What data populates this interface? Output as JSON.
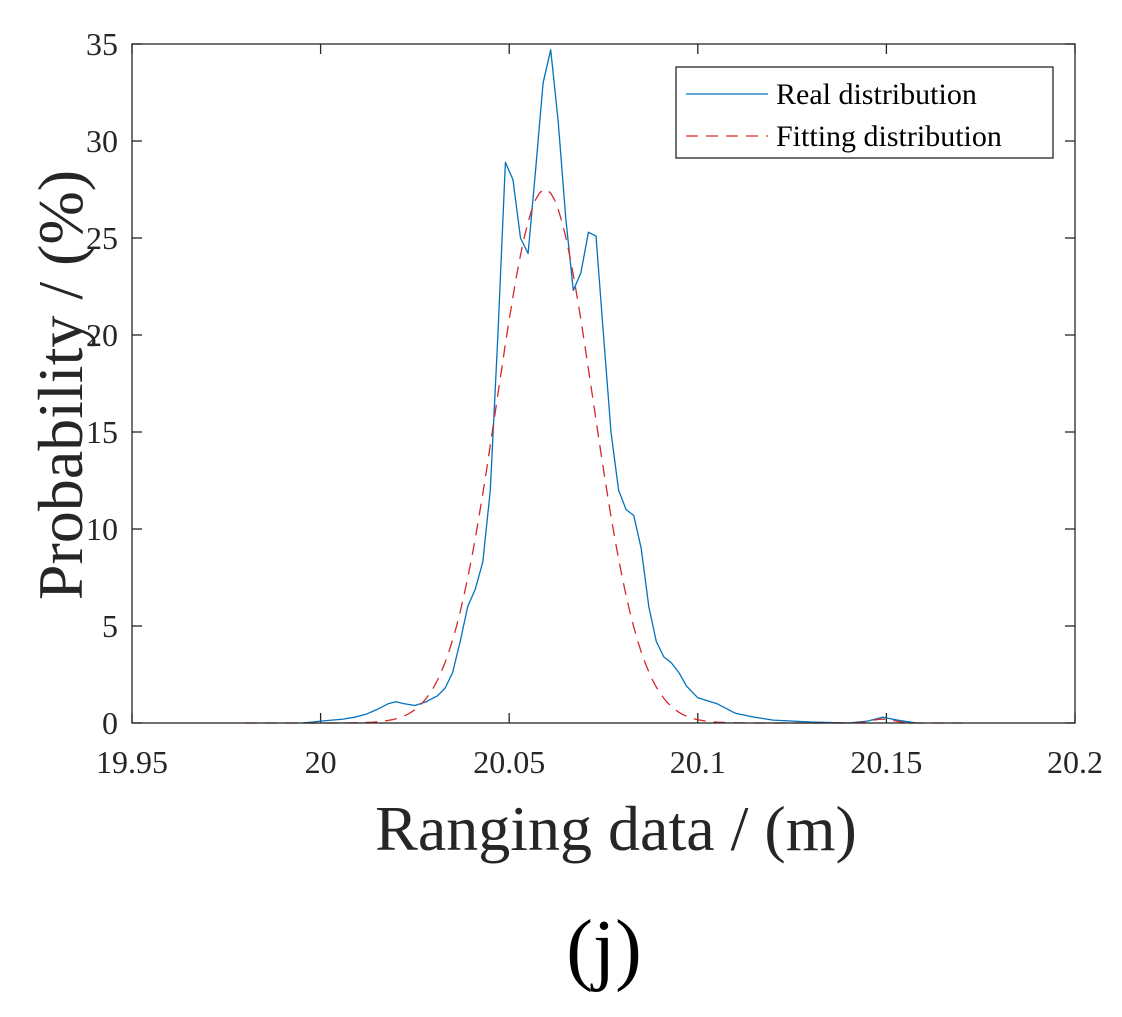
{
  "chart_data": {
    "type": "line",
    "title": "",
    "panel_label": "(j)",
    "xlabel": "Ranging data / (m)",
    "ylabel": "Probability / (%)",
    "xlim": [
      19.95,
      20.2
    ],
    "ylim": [
      0,
      35
    ],
    "xticks": [
      19.95,
      20,
      20.05,
      20.1,
      20.15,
      20.2
    ],
    "xtick_labels": [
      "19.95",
      "20",
      "20.05",
      "20.1",
      "20.15",
      "20.2"
    ],
    "yticks": [
      0,
      5,
      10,
      15,
      20,
      25,
      30,
      35
    ],
    "ytick_labels": [
      "0",
      "5",
      "10",
      "15",
      "20",
      "25",
      "30",
      "35"
    ],
    "legend_position": "top-right",
    "series": [
      {
        "name": "Real distribution",
        "color": "#0072BD",
        "style": "solid",
        "x": [
          19.995,
          19.998,
          20.0,
          20.003,
          20.006,
          20.009,
          20.012,
          20.015,
          20.018,
          20.02,
          20.022,
          20.025,
          20.028,
          20.031,
          20.033,
          20.035,
          20.037,
          20.039,
          20.041,
          20.043,
          20.045,
          20.047,
          20.049,
          20.051,
          20.053,
          20.055,
          20.057,
          20.059,
          20.061,
          20.063,
          20.065,
          20.067,
          20.069,
          20.071,
          20.073,
          20.075,
          20.077,
          20.079,
          20.081,
          20.083,
          20.085,
          20.087,
          20.089,
          20.091,
          20.093,
          20.095,
          20.097,
          20.1,
          20.105,
          20.11,
          20.115,
          20.12,
          20.13,
          20.14,
          20.145,
          20.149,
          20.153,
          20.158
        ],
        "values": [
          0,
          0.05,
          0.1,
          0.15,
          0.2,
          0.3,
          0.45,
          0.7,
          1.0,
          1.1,
          1.0,
          0.9,
          1.1,
          1.4,
          1.8,
          2.6,
          4.2,
          6.0,
          6.9,
          8.3,
          12.0,
          20.0,
          28.9,
          28.0,
          25.0,
          24.2,
          28.5,
          33.0,
          34.7,
          31.0,
          26.0,
          22.3,
          23.2,
          25.3,
          25.1,
          20.0,
          15.0,
          12.0,
          11.0,
          10.7,
          9.0,
          6.0,
          4.2,
          3.4,
          3.1,
          2.6,
          1.9,
          1.3,
          1.0,
          0.5,
          0.3,
          0.15,
          0.05,
          0.0,
          0.1,
          0.3,
          0.15,
          0.0
        ]
      },
      {
        "name": "Fitting distribution",
        "color": "#D62728",
        "style": "dashed",
        "fit": {
          "peak": 27.5,
          "center": 20.0595,
          "sigma": 0.0127,
          "x_start": 19.98,
          "x_end": 20.17,
          "step": 0.001,
          "secondary": {
            "center": 20.149,
            "peak": 0.2,
            "sigma": 0.003
          }
        }
      }
    ]
  }
}
